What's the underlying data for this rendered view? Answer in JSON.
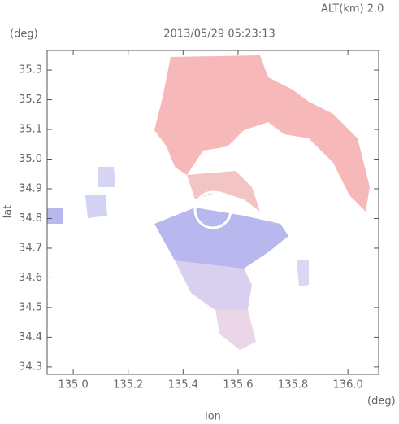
{
  "chart_data": {
    "type": "map",
    "title": "2013/05/29 05:23:13",
    "subtitle": "ALT(km) 2.0",
    "x_label": "lon",
    "y_label": "lat",
    "x_unit": "(deg)",
    "y_unit": "(deg)",
    "xlim": [
      134.905,
      136.112
    ],
    "ylim": [
      34.275,
      35.366
    ],
    "xticks": [
      {
        "value": 135,
        "label": "135.0"
      },
      135.2,
      135.4,
      135.6,
      135.8,
      {
        "value": 136,
        "label": "136.0"
      }
    ],
    "yticks": [
      34.3,
      34.4,
      34.5,
      34.6,
      34.7,
      34.8,
      34.9,
      {
        "value": 35,
        "label": "35.0"
      },
      35.1,
      35.2,
      35.3
    ]
  }
}
